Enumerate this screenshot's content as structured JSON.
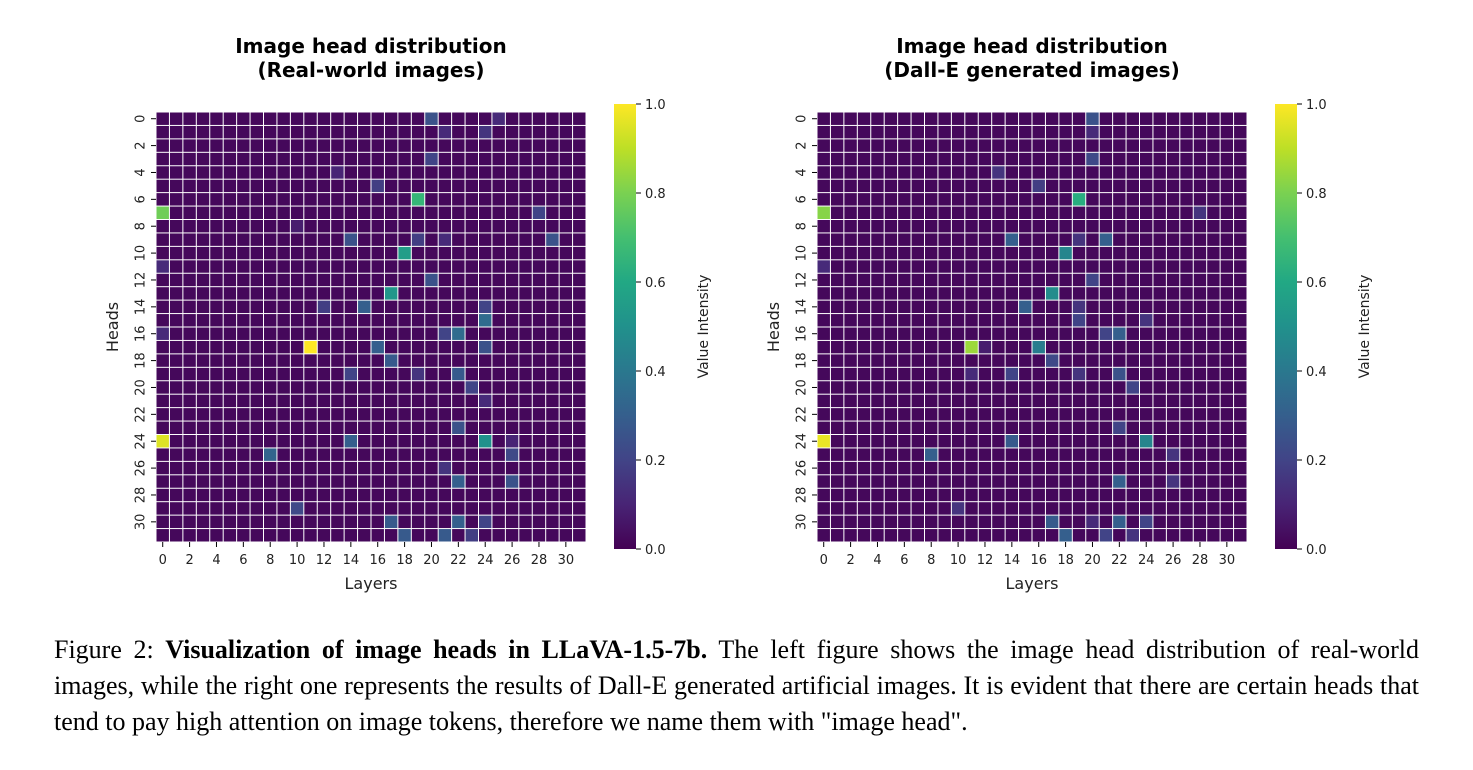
{
  "figure": {
    "caption_label": "Figure 2:",
    "caption_bold": "Visualization of image heads in LLaVA-1.5-7b.",
    "caption_text": " The left figure shows the image head distribution of real-world images, while the right one represents the results of Dall-E generated artificial images. It is evident that there are certain heads that tend to pay high attention on image tokens, therefore we name them with \"image head\"."
  },
  "chart_data": [
    {
      "type": "heatmap",
      "title_line1": "Image head distribution",
      "title_line2": "(Real-world images)",
      "xlabel": "Layers",
      "ylabel": "Heads",
      "rows": 32,
      "cols": 32,
      "x_tick_labels": [
        "0",
        "2",
        "4",
        "6",
        "8",
        "10",
        "12",
        "14",
        "16",
        "18",
        "20",
        "22",
        "24",
        "26",
        "28",
        "30"
      ],
      "y_tick_labels": [
        "0",
        "2",
        "4",
        "6",
        "8",
        "10",
        "12",
        "14",
        "16",
        "18",
        "20",
        "22",
        "24",
        "26",
        "28",
        "30"
      ],
      "colorbar_label": "Value Intensity",
      "colorbar_ticks": [
        "0.0",
        "0.2",
        "0.4",
        "0.6",
        "0.8",
        "1.0"
      ],
      "vmin": 0,
      "vmax": 1,
      "colormap": "viridis",
      "default_value": 0.02,
      "cells": [
        {
          "head": 7,
          "layer": 0,
          "value": 0.78
        },
        {
          "head": 24,
          "layer": 0,
          "value": 0.95
        },
        {
          "head": 17,
          "layer": 11,
          "value": 1.0
        },
        {
          "head": 6,
          "layer": 19,
          "value": 0.66
        },
        {
          "head": 10,
          "layer": 18,
          "value": 0.55
        },
        {
          "head": 13,
          "layer": 17,
          "value": 0.52
        },
        {
          "head": 24,
          "layer": 24,
          "value": 0.5
        },
        {
          "head": 16,
          "layer": 22,
          "value": 0.35
        },
        {
          "head": 0,
          "layer": 20,
          "value": 0.25
        },
        {
          "head": 1,
          "layer": 21,
          "value": 0.12
        },
        {
          "head": 1,
          "layer": 24,
          "value": 0.15
        },
        {
          "head": 0,
          "layer": 25,
          "value": 0.12
        },
        {
          "head": 3,
          "layer": 20,
          "value": 0.2
        },
        {
          "head": 5,
          "layer": 16,
          "value": 0.18
        },
        {
          "head": 4,
          "layer": 13,
          "value": 0.1
        },
        {
          "head": 7,
          "layer": 28,
          "value": 0.2
        },
        {
          "head": 8,
          "layer": 10,
          "value": 0.08
        },
        {
          "head": 9,
          "layer": 14,
          "value": 0.25
        },
        {
          "head": 9,
          "layer": 29,
          "value": 0.25
        },
        {
          "head": 9,
          "layer": 21,
          "value": 0.12
        },
        {
          "head": 9,
          "layer": 19,
          "value": 0.18
        },
        {
          "head": 11,
          "layer": 0,
          "value": 0.12
        },
        {
          "head": 12,
          "layer": 20,
          "value": 0.25
        },
        {
          "head": 14,
          "layer": 15,
          "value": 0.3
        },
        {
          "head": 14,
          "layer": 12,
          "value": 0.18
        },
        {
          "head": 15,
          "layer": 24,
          "value": 0.35
        },
        {
          "head": 16,
          "layer": 0,
          "value": 0.12
        },
        {
          "head": 16,
          "layer": 21,
          "value": 0.2
        },
        {
          "head": 14,
          "layer": 24,
          "value": 0.2
        },
        {
          "head": 17,
          "layer": 16,
          "value": 0.3
        },
        {
          "head": 17,
          "layer": 24,
          "value": 0.25
        },
        {
          "head": 18,
          "layer": 17,
          "value": 0.28
        },
        {
          "head": 19,
          "layer": 14,
          "value": 0.2
        },
        {
          "head": 19,
          "layer": 22,
          "value": 0.28
        },
        {
          "head": 19,
          "layer": 19,
          "value": 0.15
        },
        {
          "head": 20,
          "layer": 23,
          "value": 0.2
        },
        {
          "head": 21,
          "layer": 24,
          "value": 0.12
        },
        {
          "head": 23,
          "layer": 22,
          "value": 0.25
        },
        {
          "head": 24,
          "layer": 14,
          "value": 0.3
        },
        {
          "head": 24,
          "layer": 26,
          "value": 0.1
        },
        {
          "head": 25,
          "layer": 8,
          "value": 0.32
        },
        {
          "head": 25,
          "layer": 26,
          "value": 0.22
        },
        {
          "head": 26,
          "layer": 21,
          "value": 0.15
        },
        {
          "head": 27,
          "layer": 22,
          "value": 0.3
        },
        {
          "head": 27,
          "layer": 26,
          "value": 0.25
        },
        {
          "head": 29,
          "layer": 10,
          "value": 0.22
        },
        {
          "head": 30,
          "layer": 17,
          "value": 0.28
        },
        {
          "head": 30,
          "layer": 22,
          "value": 0.3
        },
        {
          "head": 30,
          "layer": 24,
          "value": 0.2
        },
        {
          "head": 31,
          "layer": 18,
          "value": 0.28
        },
        {
          "head": 31,
          "layer": 21,
          "value": 0.28
        },
        {
          "head": 31,
          "layer": 23,
          "value": 0.18
        }
      ]
    },
    {
      "type": "heatmap",
      "title_line1": "Image head distribution",
      "title_line2": "(Dall-E generated images)",
      "xlabel": "Layers",
      "ylabel": "Heads",
      "rows": 32,
      "cols": 32,
      "x_tick_labels": [
        "0",
        "2",
        "4",
        "6",
        "8",
        "10",
        "12",
        "14",
        "16",
        "18",
        "20",
        "22",
        "24",
        "26",
        "28",
        "30"
      ],
      "y_tick_labels": [
        "0",
        "2",
        "4",
        "6",
        "8",
        "10",
        "12",
        "14",
        "16",
        "18",
        "20",
        "22",
        "24",
        "26",
        "28",
        "30"
      ],
      "colorbar_label": "Value Intensity",
      "colorbar_ticks": [
        "0.0",
        "0.2",
        "0.4",
        "0.6",
        "0.8",
        "1.0"
      ],
      "vmin": 0,
      "vmax": 1,
      "colormap": "viridis",
      "default_value": 0.02,
      "cells": [
        {
          "head": 7,
          "layer": 0,
          "value": 0.82
        },
        {
          "head": 24,
          "layer": 0,
          "value": 0.97
        },
        {
          "head": 17,
          "layer": 11,
          "value": 0.85
        },
        {
          "head": 6,
          "layer": 19,
          "value": 0.62
        },
        {
          "head": 10,
          "layer": 18,
          "value": 0.45
        },
        {
          "head": 13,
          "layer": 17,
          "value": 0.48
        },
        {
          "head": 24,
          "layer": 24,
          "value": 0.45
        },
        {
          "head": 17,
          "layer": 16,
          "value": 0.42
        },
        {
          "head": 16,
          "layer": 22,
          "value": 0.3
        },
        {
          "head": 0,
          "layer": 20,
          "value": 0.25
        },
        {
          "head": 1,
          "layer": 20,
          "value": 0.12
        },
        {
          "head": 3,
          "layer": 20,
          "value": 0.22
        },
        {
          "head": 4,
          "layer": 13,
          "value": 0.15
        },
        {
          "head": 5,
          "layer": 16,
          "value": 0.18
        },
        {
          "head": 7,
          "layer": 28,
          "value": 0.15
        },
        {
          "head": 9,
          "layer": 14,
          "value": 0.3
        },
        {
          "head": 9,
          "layer": 21,
          "value": 0.3
        },
        {
          "head": 9,
          "layer": 19,
          "value": 0.15
        },
        {
          "head": 11,
          "layer": 0,
          "value": 0.12
        },
        {
          "head": 12,
          "layer": 20,
          "value": 0.2
        },
        {
          "head": 14,
          "layer": 15,
          "value": 0.3
        },
        {
          "head": 14,
          "layer": 19,
          "value": 0.15
        },
        {
          "head": 15,
          "layer": 19,
          "value": 0.2
        },
        {
          "head": 15,
          "layer": 24,
          "value": 0.15
        },
        {
          "head": 16,
          "layer": 21,
          "value": 0.2
        },
        {
          "head": 17,
          "layer": 12,
          "value": 0.08
        },
        {
          "head": 18,
          "layer": 17,
          "value": 0.22
        },
        {
          "head": 19,
          "layer": 11,
          "value": 0.12
        },
        {
          "head": 19,
          "layer": 14,
          "value": 0.2
        },
        {
          "head": 19,
          "layer": 19,
          "value": 0.15
        },
        {
          "head": 19,
          "layer": 22,
          "value": 0.25
        },
        {
          "head": 20,
          "layer": 23,
          "value": 0.2
        },
        {
          "head": 23,
          "layer": 22,
          "value": 0.2
        },
        {
          "head": 24,
          "layer": 14,
          "value": 0.28
        },
        {
          "head": 25,
          "layer": 8,
          "value": 0.3
        },
        {
          "head": 25,
          "layer": 26,
          "value": 0.15
        },
        {
          "head": 27,
          "layer": 22,
          "value": 0.3
        },
        {
          "head": 27,
          "layer": 26,
          "value": 0.15
        },
        {
          "head": 29,
          "layer": 10,
          "value": 0.15
        },
        {
          "head": 30,
          "layer": 17,
          "value": 0.28
        },
        {
          "head": 30,
          "layer": 22,
          "value": 0.3
        },
        {
          "head": 30,
          "layer": 24,
          "value": 0.2
        },
        {
          "head": 30,
          "layer": 20,
          "value": 0.12
        },
        {
          "head": 31,
          "layer": 18,
          "value": 0.3
        },
        {
          "head": 31,
          "layer": 21,
          "value": 0.2
        },
        {
          "head": 31,
          "layer": 23,
          "value": 0.15
        }
      ]
    }
  ]
}
